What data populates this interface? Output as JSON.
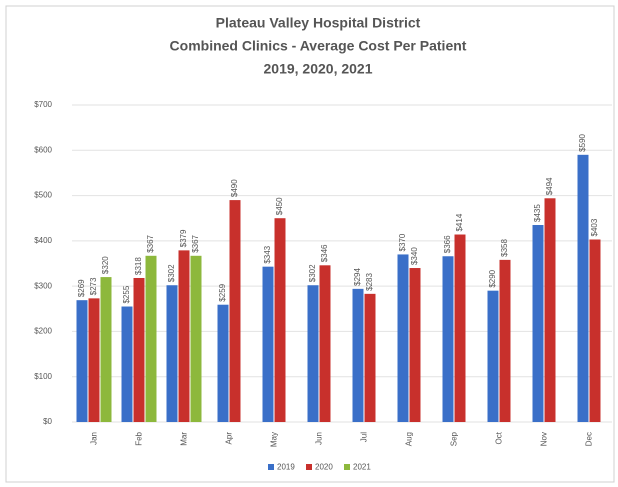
{
  "chart_data": {
    "type": "bar",
    "title": [
      "Plateau Valley Hospital District",
      "Combined Clinics  - Average Cost Per Patient",
      "2019, 2020, 2021"
    ],
    "categories": [
      "Jan",
      "Feb",
      "Mar",
      "Apr",
      "May",
      "Jun",
      "Jul",
      "Aug",
      "Sep",
      "Oct",
      "Nov",
      "Dec"
    ],
    "series": [
      {
        "name": "2019",
        "color": "#3a6fc8",
        "values": [
          269,
          255,
          302,
          259,
          343,
          302,
          294,
          370,
          366,
          290,
          435,
          590
        ],
        "value_labels": [
          "$269",
          "$255",
          "$302",
          "$259",
          "$343",
          "$302",
          "$294",
          "$370",
          "$366",
          "$290",
          "$435",
          "$590"
        ]
      },
      {
        "name": "2020",
        "color": "#c8302c",
        "values": [
          273,
          318,
          379,
          490,
          450,
          346,
          283,
          340,
          414,
          358,
          494,
          403
        ],
        "value_labels": [
          "$273",
          "$318",
          "$379",
          "$490",
          "$450",
          "$346",
          "$283",
          "$340",
          "$414",
          "$358",
          "$494",
          "$403"
        ]
      },
      {
        "name": "2021",
        "color": "#8db83c",
        "values": [
          320,
          367,
          367,
          null,
          null,
          null,
          null,
          null,
          null,
          null,
          null,
          null
        ],
        "value_labels": [
          "$320",
          "$367",
          "$367",
          null,
          null,
          null,
          null,
          null,
          null,
          null,
          null,
          null
        ]
      }
    ],
    "ylim": [
      0,
      700
    ],
    "yticks": [
      {
        "value": 0,
        "label": "$0"
      },
      {
        "value": 100,
        "label": "$100"
      },
      {
        "value": 200,
        "label": "$200"
      },
      {
        "value": 300,
        "label": "$300"
      },
      {
        "value": 400,
        "label": "$400"
      },
      {
        "value": 500,
        "label": "$500"
      },
      {
        "value": 600,
        "label": "$600"
      },
      {
        "value": 700,
        "label": "$700"
      }
    ],
    "grid": true,
    "legend": "bottom"
  }
}
